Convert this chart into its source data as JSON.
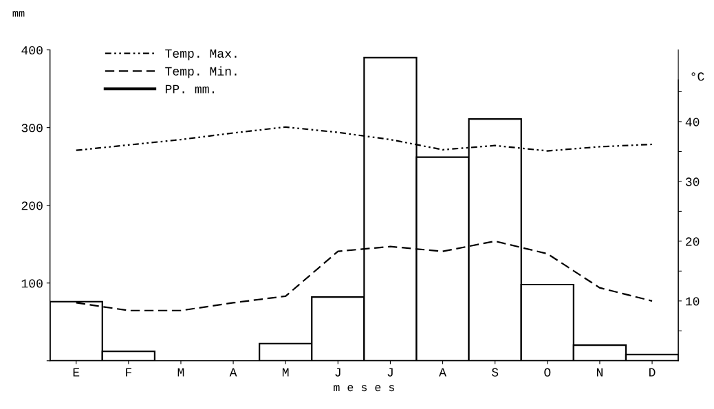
{
  "chart_data": {
    "type": "bar",
    "xlabel": "m e s e s",
    "ylabel": "mm",
    "y2label": "°C",
    "categories": [
      "E",
      "F",
      "M",
      "A",
      "M",
      "J",
      "J",
      "A",
      "S",
      "O",
      "N",
      "D"
    ],
    "series": [
      {
        "name": "Temp. Max.",
        "type": "line",
        "axis": "y2",
        "color": "#000000",
        "line_style": "dashdot",
        "values": [
          35.2,
          36.1,
          37.0,
          38.1,
          39.1,
          38.2,
          37.0,
          35.3,
          36.0,
          35.1,
          35.8,
          36.2
        ]
      },
      {
        "name": "Temp. Min.",
        "type": "line",
        "axis": "y2",
        "color": "#000000",
        "line_style": "dashed",
        "values": [
          9.7,
          8.4,
          8.4,
          9.7,
          10.8,
          18.3,
          19.1,
          18.3,
          20.0,
          17.9,
          12.2,
          10.0
        ]
      },
      {
        "name": "PP. mm.",
        "color": "#ffffff",
        "values": [
          76,
          12,
          0,
          0,
          22,
          82,
          390,
          262,
          311,
          98,
          20,
          8
        ]
      }
    ],
    "ylim": [
      0,
      400
    ],
    "yticks": [
      {
        "value": 0,
        "label": null
      },
      100,
      200,
      300,
      400
    ],
    "y2lim": [
      0,
      52
    ],
    "y2ticks": [
      {
        "value": 5,
        "label": null
      },
      10,
      {
        "value": 15,
        "label": null
      },
      20,
      {
        "value": 25,
        "label": null
      },
      30,
      {
        "value": 35,
        "label": null
      },
      40,
      {
        "value": 45,
        "label": null
      }
    ],
    "grid": false,
    "legend": "top left"
  }
}
